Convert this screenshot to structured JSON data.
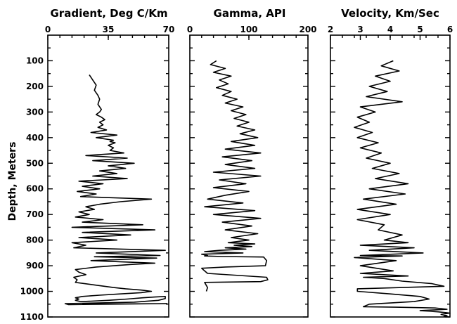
{
  "figure": {
    "y_axis_label": "Depth, Meters"
  },
  "chart_data": [
    {
      "type": "line",
      "title": "Gradient, Deg C/Km",
      "ylabel": "Depth, Meters",
      "xlim": [
        0,
        70
      ],
      "ylim": [
        1100,
        0
      ],
      "x_ticks": [
        0,
        35,
        70
      ],
      "y_ticks": [
        100,
        200,
        300,
        400,
        500,
        600,
        700,
        800,
        900,
        1000,
        1100
      ],
      "grid": false,
      "series": [
        {
          "x": [
            24,
            26,
            28,
            27,
            29,
            30,
            29,
            31,
            30,
            28,
            31,
            33,
            30,
            32,
            29,
            34,
            25,
            40,
            28,
            38,
            36,
            39,
            35,
            38,
            36,
            44,
            22,
            46,
            26,
            50,
            35,
            45,
            30,
            40,
            26,
            46,
            18,
            32,
            20,
            30,
            17,
            28,
            19,
            60,
            42,
            30,
            22,
            27,
            18,
            24,
            16,
            32,
            20,
            55,
            14,
            62,
            20,
            48,
            18,
            40,
            14,
            22,
            15,
            68,
            28,
            65,
            27,
            63,
            25,
            62,
            48,
            28,
            16,
            18,
            22,
            15,
            17,
            16,
            27,
            38,
            45,
            54,
            60,
            54,
            42,
            30,
            20,
            16,
            18,
            16,
            19,
            20,
            35,
            46,
            55,
            62,
            68,
            68,
            64,
            50,
            10,
            12,
            35,
            69,
            20
          ],
          "y": [
            155,
            175,
            195,
            215,
            235,
            250,
            270,
            290,
            300,
            310,
            320,
            330,
            340,
            350,
            360,
            370,
            380,
            390,
            400,
            410,
            415,
            420,
            430,
            440,
            450,
            460,
            470,
            480,
            490,
            500,
            510,
            520,
            530,
            540,
            550,
            560,
            570,
            580,
            590,
            600,
            610,
            620,
            630,
            640,
            650,
            660,
            670,
            680,
            690,
            700,
            710,
            720,
            730,
            740,
            750,
            760,
            770,
            780,
            790,
            800,
            810,
            820,
            830,
            840,
            850,
            860,
            865,
            870,
            880,
            890,
            895,
            905,
            915,
            925,
            935,
            945,
            955,
            965,
            975,
            985,
            990,
            995,
            1000,
            1005,
            1010,
            1015,
            1020,
            1025,
            1030,
            1035,
            1040,
            1040,
            1035,
            1030,
            1025,
            1022,
            1020,
            1028,
            1035,
            1042,
            1048,
            1052,
            1050,
            1048,
            1050
          ]
        }
      ]
    },
    {
      "type": "line",
      "title": "Gamma, API",
      "xlim": [
        0,
        200
      ],
      "ylim": [
        1100,
        0
      ],
      "x_ticks": [
        0,
        100,
        200
      ],
      "y_ticks": [
        100,
        200,
        300,
        400,
        500,
        600,
        700,
        800,
        900,
        1000,
        1100
      ],
      "grid": false,
      "series": [
        {
          "x": [
            45,
            35,
            60,
            40,
            70,
            50,
            65,
            45,
            70,
            55,
            80,
            60,
            90,
            70,
            95,
            75,
            100,
            80,
            110,
            85,
            115,
            70,
            110,
            60,
            120,
            55,
            105,
            60,
            110,
            40,
            120,
            50,
            95,
            40,
            100,
            60,
            30,
            90,
            25,
            110,
            40,
            120,
            55,
            105,
            60,
            115,
            70,
            100,
            65,
            110,
            75,
            105,
            60,
            95,
            50,
            25,
            90,
            20,
            30,
            25,
            55,
            125,
            130,
            128,
            60,
            20,
            25,
            30,
            130,
            132,
            120,
            25,
            30,
            28
          ],
          "y": [
            100,
            115,
            130,
            145,
            160,
            175,
            190,
            205,
            220,
            235,
            250,
            265,
            280,
            295,
            310,
            325,
            340,
            355,
            370,
            385,
            400,
            415,
            430,
            445,
            460,
            475,
            490,
            505,
            520,
            535,
            550,
            565,
            580,
            595,
            610,
            625,
            640,
            655,
            670,
            685,
            700,
            715,
            730,
            745,
            760,
            775,
            790,
            800,
            810,
            815,
            820,
            825,
            830,
            835,
            840,
            845,
            850,
            855,
            860,
            862,
            864,
            866,
            880,
            900,
            905,
            910,
            920,
            930,
            945,
            955,
            962,
            965,
            985,
            1000
          ]
        }
      ]
    },
    {
      "type": "line",
      "title": "Velocity, Km/Sec",
      "xlim": [
        2,
        6
      ],
      "ylim": [
        1100,
        0
      ],
      "x_ticks": [
        2,
        3,
        4,
        5,
        6
      ],
      "y_ticks": [
        100,
        200,
        300,
        400,
        500,
        600,
        700,
        800,
        900,
        1000,
        1100
      ],
      "grid": false,
      "series": [
        {
          "x": [
            4.1,
            3.7,
            4.3,
            3.5,
            4.0,
            3.3,
            3.9,
            3.2,
            4.4,
            3.0,
            3.5,
            2.9,
            3.3,
            2.8,
            3.4,
            2.9,
            3.6,
            3.0,
            3.7,
            3.2,
            4.0,
            3.4,
            4.3,
            3.5,
            4.6,
            3.3,
            4.5,
            3.1,
            4.2,
            2.9,
            4.0,
            2.9,
            3.8,
            3.6,
            4.4,
            3.8,
            4.6,
            3.0,
            4.8,
            3.3,
            5.1,
            3.0,
            4.4,
            2.8,
            4.2,
            3.0,
            4.1,
            3.0,
            4.6,
            3.1,
            3.8,
            4.4,
            5.4,
            5.8,
            2.9,
            2.9,
            4.0,
            5.0,
            5.3,
            4.8,
            3.3,
            3.1,
            4.2,
            5.5,
            5.9,
            5.0,
            5.6,
            6.0,
            5.7,
            5.9,
            5.8,
            6.0
          ],
          "y": [
            100,
            120,
            140,
            160,
            180,
            200,
            220,
            240,
            260,
            280,
            300,
            320,
            340,
            360,
            380,
            400,
            420,
            440,
            460,
            480,
            500,
            520,
            540,
            560,
            580,
            600,
            620,
            640,
            660,
            680,
            700,
            720,
            740,
            760,
            780,
            800,
            810,
            820,
            830,
            840,
            850,
            860,
            862,
            868,
            880,
            900,
            920,
            930,
            940,
            945,
            950,
            960,
            970,
            980,
            990,
            1000,
            1010,
            1020,
            1030,
            1040,
            1050,
            1060,
            1062,
            1065,
            1070,
            1075,
            1080,
            1085,
            1090,
            1095,
            1098,
            1100
          ]
        }
      ]
    }
  ]
}
